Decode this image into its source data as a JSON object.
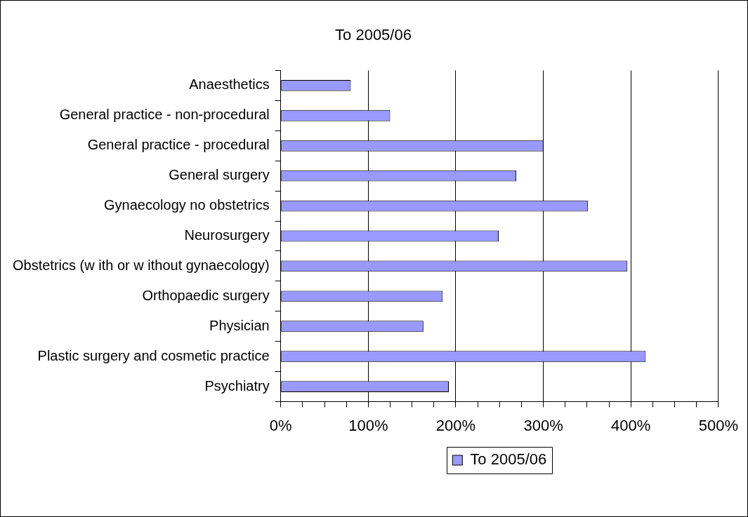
{
  "chart_data": {
    "type": "bar",
    "orientation": "horizontal",
    "title": "To 2005/06",
    "categories": [
      "Anaesthetics",
      "General practice - non-procedural",
      "General practice - procedural",
      "General surgery",
      "Gynaecology no obstetrics",
      "Neurosurgery",
      "Obstetrics (w ith or w ithout gynaecology)",
      "Orthopaedic surgery",
      "Physician",
      "Plastic surgery and cosmetic practice",
      "Psychiatry"
    ],
    "series": [
      {
        "name": "To 2005/06",
        "color": "#9999ff",
        "values": [
          80,
          125,
          300,
          269,
          351,
          249,
          396,
          185,
          163,
          417,
          192
        ]
      }
    ],
    "xlim": [
      0,
      500
    ],
    "xticks": [
      {
        "value": 0,
        "label": "0%"
      },
      {
        "value": 25,
        "label": null
      },
      {
        "value": 50,
        "label": null
      },
      {
        "value": 75,
        "label": null
      },
      {
        "value": 100,
        "label": "100%"
      },
      {
        "value": 125,
        "label": null
      },
      {
        "value": 150,
        "label": null
      },
      {
        "value": 175,
        "label": null
      },
      {
        "value": 200,
        "label": "200%"
      },
      {
        "value": 225,
        "label": null
      },
      {
        "value": 250,
        "label": null
      },
      {
        "value": 275,
        "label": null
      },
      {
        "value": 300,
        "label": "300%"
      },
      {
        "value": 325,
        "label": null
      },
      {
        "value": 350,
        "label": null
      },
      {
        "value": 375,
        "label": null
      },
      {
        "value": 400,
        "label": "400%"
      },
      {
        "value": 425,
        "label": null
      },
      {
        "value": 450,
        "label": null
      },
      {
        "value": 475,
        "label": null
      },
      {
        "value": 500,
        "label": "500%"
      }
    ],
    "grid": "x",
    "legend": "bottom"
  }
}
